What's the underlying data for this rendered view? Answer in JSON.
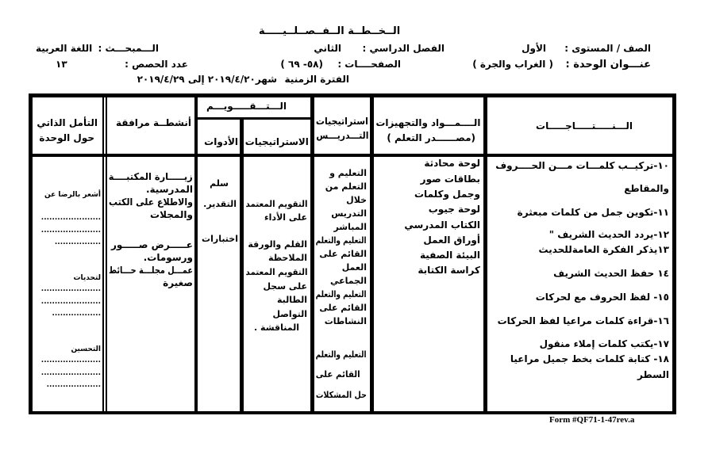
{
  "header": {
    "title": "الــخــطــة الــفــصــلــيـــــة",
    "grade_label": "الصف / المستوى :",
    "grade_value": "الأول",
    "semester_label": "الفصل الدراسي :",
    "semester_value": "الثاني",
    "subject_label": "الـــمبحـــث :",
    "subject_value": "اللغة العربية",
    "unit_label": "عنـــوان الوحدة :",
    "unit_value": "(   الغراب والجرة          )",
    "pages_label": "الصفحــــات :",
    "pages_value": "(٥٨-   ٦٩   )",
    "periods_label": "عدد الحصص :",
    "periods_value": "١٣",
    "period_label": "الفترة الزمنية",
    "period_value": "شهر٢٠١٩/٤/٢٠ إلى ٢٠١٩/٤/٢٩"
  },
  "table": {
    "headers": {
      "outcomes": "الـــنـــــتـــــاجـــــات",
      "materials_1": "الــــمـــواد والتجهيزات",
      "materials_2": "(مصــــــدر التعلم )",
      "teaching_1": "استراتيجيات",
      "teaching_2": "التـــدريـــس",
      "evaluation": "الـــتـــقـــــويـــم",
      "eval_strategies": "الاستراتيجيات",
      "eval_tools": "الأدوات",
      "activities": "أنشطــة مرافقة",
      "reflection_1": "التأمل الذاتي",
      "reflection_2": "حول الوحدة"
    },
    "outcomes": [
      "١٠-تركيــب كلمـــات مـــن الحــــروف",
      "والمقاطع",
      "١١-تكوين جمل من كلمات مبعثرة",
      "١٢-يردد الحديث الشريف        \"",
      "١٣يذكر الفكرة العامةللحديث",
      "١٤ حفظ الحديث الشريف",
      "١٥- لفظ الحروف مع لحركات",
      "١٦-قراءة كلمات مراعيا لفظ الحركات",
      "١٧-يكتب كلمات إملاء منقول",
      "١٨- كتابة كلمات بخط جميل مراعيا",
      "السطر"
    ],
    "materials": [
      "لوحة محادثة",
      "بطاقات صور",
      "وجمل وكلمات",
      "لوحة جيوب",
      "الكتاب المدرسي",
      "أوراق العمل",
      "البيئة الصفية",
      "كراسة الكتابة"
    ],
    "teaching": [
      "التعليم و",
      "التعلم من",
      "خلال",
      "التدريس",
      "المباشر",
      "التعليم والتعلم",
      "القائم على",
      "العمل",
      "الجماعي",
      "التعليم والتعلم",
      "القائم على",
      "النشاطات",
      "التعليم والتعلم",
      "القائم على",
      "حل المشكلات"
    ],
    "eval_strategies": [
      "التقويم المعتمد",
      "على الأداء",
      "القلم والورقة",
      "الملاحظة",
      "التقويم المعتمد",
      "على سجل",
      "الطالبة",
      "التواصل",
      "المناقشة ."
    ],
    "eval_tools": [
      "سلم",
      "التقدير.",
      "اختبارات"
    ],
    "activities": [
      "زيـــــارة المكتبــــة",
      "المدرسية.",
      "والاطلاع على الكتب",
      "والمجلات",
      "عـــــرض صـــــور",
      "ورسومات.",
      "عمـــل مجلـــة حـــائط",
      "صغيرة"
    ],
    "reflection": [
      "أشعر بالرضا عن",
      "......................",
      "......................",
      ".................",
      "لتحديات",
      "......................",
      "......................",
      "..................",
      "التحسين",
      "......................",
      "......................",
      "...................."
    ]
  },
  "footer": {
    "form": "Form #QF71-1-47rev.a"
  }
}
